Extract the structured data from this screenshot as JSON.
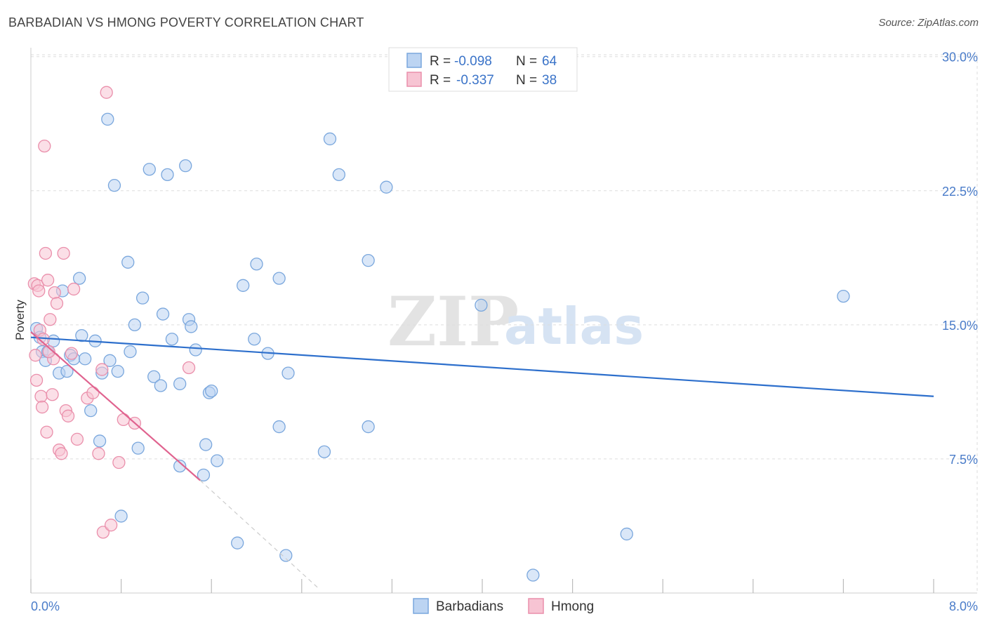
{
  "header": {
    "title": "BARBADIAN VS HMONG POVERTY CORRELATION CHART",
    "source": "Source: ZipAtlas.com"
  },
  "watermark": {
    "zip": "ZIP",
    "atlas": "atlas"
  },
  "colors": {
    "blue_fill": "#bcd4f2",
    "blue_stroke": "#7aa7dd",
    "blue_line": "#2d6fcc",
    "pink_fill": "#f7c4d3",
    "pink_stroke": "#ea8fab",
    "pink_line": "#e0638f",
    "grid": "#dddddd",
    "axis_label": "#4a7cc9"
  },
  "legend": {
    "rows": [
      {
        "r_label": "R =",
        "r_value": "-0.098",
        "n_label": "N =",
        "n_value": "64"
      },
      {
        "r_label": "R =",
        "r_value": "-0.337",
        "n_label": "N =",
        "n_value": "38"
      }
    ]
  },
  "chart_data": {
    "type": "scatter",
    "title": "BARBADIAN VS HMONG POVERTY CORRELATION CHART",
    "xlabel": "",
    "ylabel": "Poverty",
    "xlim": [
      0,
      8
    ],
    "ylim": [
      0,
      30.5
    ],
    "x_tick_labels": [
      "0.0%",
      "8.0%"
    ],
    "y_ticks": [
      7.5,
      15.0,
      22.5,
      30.0
    ],
    "y_tick_labels": [
      "7.5%",
      "15.0%",
      "22.5%",
      "30.0%"
    ],
    "series": [
      {
        "name": "Barbadians",
        "r": -0.098,
        "n": 64,
        "trend": {
          "x": [
            0,
            8
          ],
          "y": [
            14.3,
            11.0
          ],
          "dashed_extension": false
        },
        "points": [
          [
            0.05,
            14.8
          ],
          [
            0.08,
            14.3
          ],
          [
            0.1,
            13.5
          ],
          [
            0.13,
            13.0
          ],
          [
            0.15,
            13.5
          ],
          [
            0.2,
            14.1
          ],
          [
            0.25,
            12.3
          ],
          [
            0.28,
            16.9
          ],
          [
            0.32,
            12.4
          ],
          [
            0.35,
            13.3
          ],
          [
            0.38,
            13.1
          ],
          [
            0.43,
            17.6
          ],
          [
            0.45,
            14.4
          ],
          [
            0.48,
            13.1
          ],
          [
            0.53,
            10.2
          ],
          [
            0.57,
            14.1
          ],
          [
            0.61,
            8.5
          ],
          [
            0.63,
            12.3
          ],
          [
            0.68,
            26.5
          ],
          [
            0.7,
            13.0
          ],
          [
            0.74,
            22.8
          ],
          [
            0.77,
            12.4
          ],
          [
            0.8,
            4.3
          ],
          [
            0.86,
            18.5
          ],
          [
            0.88,
            13.5
          ],
          [
            0.92,
            15.0
          ],
          [
            0.95,
            8.1
          ],
          [
            0.99,
            16.5
          ],
          [
            1.05,
            23.7
          ],
          [
            1.09,
            12.1
          ],
          [
            1.15,
            11.6
          ],
          [
            1.17,
            15.6
          ],
          [
            1.21,
            23.4
          ],
          [
            1.25,
            14.2
          ],
          [
            1.32,
            11.7
          ],
          [
            1.37,
            23.9
          ],
          [
            1.4,
            15.3
          ],
          [
            1.42,
            14.9
          ],
          [
            1.46,
            13.6
          ],
          [
            1.53,
            6.6
          ],
          [
            1.55,
            8.3
          ],
          [
            1.58,
            11.2
          ],
          [
            1.6,
            11.3
          ],
          [
            1.65,
            7.4
          ],
          [
            1.83,
            2.8
          ],
          [
            1.88,
            17.2
          ],
          [
            1.98,
            14.2
          ],
          [
            2.0,
            18.4
          ],
          [
            2.1,
            13.4
          ],
          [
            2.2,
            9.3
          ],
          [
            2.2,
            17.6
          ],
          [
            2.26,
            2.1
          ],
          [
            2.28,
            12.3
          ],
          [
            2.6,
            7.9
          ],
          [
            2.65,
            25.4
          ],
          [
            2.73,
            23.4
          ],
          [
            2.99,
            9.3
          ],
          [
            2.99,
            18.6
          ],
          [
            3.15,
            22.7
          ],
          [
            3.99,
            16.1
          ],
          [
            4.45,
            1.0
          ],
          [
            5.28,
            3.3
          ],
          [
            7.2,
            16.6
          ],
          [
            1.32,
            7.1
          ]
        ]
      },
      {
        "name": "Hmong",
        "r": -0.337,
        "n": 38,
        "trend": {
          "x": [
            0,
            1.5
          ],
          "y": [
            14.6,
            6.3
          ],
          "dashed_extension": true,
          "dash_to": [
            2.56,
            0.2
          ]
        },
        "points": [
          [
            0.03,
            17.3
          ],
          [
            0.04,
            13.3
          ],
          [
            0.05,
            11.9
          ],
          [
            0.06,
            17.2
          ],
          [
            0.07,
            16.9
          ],
          [
            0.08,
            14.7
          ],
          [
            0.09,
            11.0
          ],
          [
            0.1,
            10.4
          ],
          [
            0.12,
            25.0
          ],
          [
            0.13,
            19.0
          ],
          [
            0.14,
            9.0
          ],
          [
            0.15,
            17.5
          ],
          [
            0.17,
            15.3
          ],
          [
            0.19,
            11.1
          ],
          [
            0.2,
            13.1
          ],
          [
            0.21,
            16.8
          ],
          [
            0.23,
            16.2
          ],
          [
            0.25,
            8.0
          ],
          [
            0.27,
            7.8
          ],
          [
            0.29,
            19.0
          ],
          [
            0.31,
            10.2
          ],
          [
            0.33,
            9.9
          ],
          [
            0.38,
            17.0
          ],
          [
            0.41,
            8.6
          ],
          [
            0.5,
            10.9
          ],
          [
            0.55,
            11.2
          ],
          [
            0.6,
            7.8
          ],
          [
            0.63,
            12.5
          ],
          [
            0.64,
            3.4
          ],
          [
            0.67,
            28.0
          ],
          [
            0.71,
            3.8
          ],
          [
            0.78,
            7.3
          ],
          [
            0.82,
            9.7
          ],
          [
            0.92,
            9.5
          ],
          [
            1.4,
            12.6
          ],
          [
            0.36,
            13.4
          ],
          [
            0.16,
            13.5
          ],
          [
            0.11,
            14.2
          ]
        ]
      }
    ],
    "legend_position": "top-center"
  },
  "bottom_legend": [
    {
      "label": "Barbadians"
    },
    {
      "label": "Hmong"
    }
  ]
}
